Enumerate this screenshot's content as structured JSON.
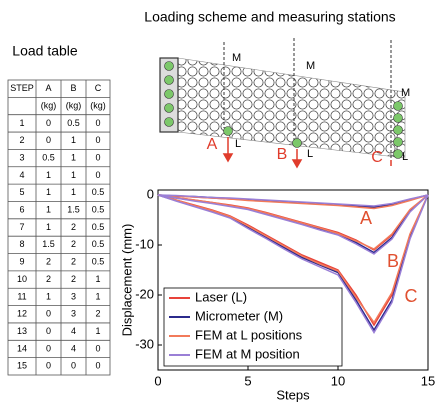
{
  "load_table": {
    "title": "Load table",
    "header": [
      "STEP",
      "A",
      "B",
      "C"
    ],
    "units": [
      "(kg)",
      "(kg)",
      "(kg)"
    ],
    "rows": [
      [
        1,
        0,
        0.5,
        0
      ],
      [
        2,
        0,
        1,
        0
      ],
      [
        3,
        0.5,
        1,
        0
      ],
      [
        4,
        1,
        1,
        0
      ],
      [
        5,
        1,
        1,
        0.5
      ],
      [
        6,
        1,
        1.5,
        0.5
      ],
      [
        7,
        1,
        2,
        0.5
      ],
      [
        8,
        1.5,
        2,
        0.5
      ],
      [
        9,
        2,
        2,
        0.5
      ],
      [
        10,
        2,
        2,
        1
      ],
      [
        11,
        1,
        3,
        1
      ],
      [
        12,
        0,
        3,
        2
      ],
      [
        13,
        0,
        4,
        1
      ],
      [
        14,
        0,
        4,
        0
      ],
      [
        15,
        0,
        0,
        0
      ]
    ]
  },
  "diagram": {
    "title": "Loading scheme and measuring stations",
    "loads": [
      "A",
      "B",
      "C"
    ],
    "stations_m": [
      "M",
      "M",
      "M"
    ],
    "stations_l": [
      "L",
      "L",
      "L"
    ]
  },
  "chart_data": {
    "type": "line",
    "x_label": "Steps",
    "y_label": "Displacement (mm)",
    "x": [
      0,
      1,
      2,
      3,
      4,
      5,
      6,
      7,
      8,
      9,
      10,
      11,
      12,
      13,
      14,
      15
    ],
    "xlim": [
      0,
      15
    ],
    "xticks": [
      0,
      5,
      10,
      15
    ],
    "ylim": [
      -35,
      1
    ],
    "yticks": [
      0,
      -10,
      -20,
      -30
    ],
    "annotations": [
      "A",
      "B",
      "C"
    ],
    "legend": "lower left",
    "series": [
      {
        "name": "Laser (L)",
        "color": "#e8433a",
        "lines": [
          {
            "values": [
              0,
              -0.2,
              -0.4,
              -0.6,
              -0.8,
              -1,
              -1.2,
              -1.4,
              -1.6,
              -1.8,
              -2,
              -2.3,
              -2.6,
              -2,
              -1,
              0
            ]
          },
          {
            "values": [
              0,
              -0.5,
              -1,
              -1.5,
              -2,
              -2.6,
              -3.5,
              -4.5,
              -5.5,
              -6.5,
              -7.5,
              -9,
              -11,
              -8,
              -3,
              0
            ]
          },
          {
            "values": [
              0,
              -1,
              -2,
              -3,
              -4.2,
              -6,
              -8,
              -10,
              -12,
              -13.5,
              -15,
              -20,
              -26,
              -20,
              -8,
              0
            ]
          }
        ]
      },
      {
        "name": "Micrometer (M)",
        "color": "#2b2a8c",
        "lines": [
          {
            "values": [
              0,
              -0.2,
              -0.3,
              -0.5,
              -0.7,
              -0.9,
              -1.1,
              -1.3,
              -1.5,
              -1.7,
              -1.9,
              -2.1,
              -2.4,
              -1.8,
              -0.9,
              0
            ]
          },
          {
            "values": [
              0,
              -0.6,
              -1.1,
              -1.6,
              -2.2,
              -2.8,
              -3.8,
              -4.8,
              -5.8,
              -6.8,
              -7.8,
              -9.5,
              -11.5,
              -8.5,
              -3.2,
              0
            ]
          },
          {
            "values": [
              0,
              -1.1,
              -2.2,
              -3.3,
              -4.5,
              -6.5,
              -8.5,
              -10.5,
              -12.5,
              -14,
              -15.5,
              -21,
              -27,
              -21,
              -8.5,
              0
            ]
          }
        ]
      },
      {
        "name": "FEM at L positions",
        "color": "#f27a5a",
        "lines": [
          {
            "values": [
              0,
              -0.2,
              -0.4,
              -0.6,
              -0.8,
              -1.1,
              -1.3,
              -1.5,
              -1.7,
              -1.9,
              -2.1,
              -2.4,
              -2.7,
              -2.1,
              -1.1,
              0
            ]
          },
          {
            "values": [
              0,
              -0.5,
              -1,
              -1.5,
              -2.1,
              -2.7,
              -3.6,
              -4.6,
              -5.6,
              -6.6,
              -7.7,
              -9.2,
              -10.8,
              -7.8,
              -2.9,
              0
            ]
          },
          {
            "values": [
              0,
              -1,
              -2.1,
              -3.1,
              -4.3,
              -6.2,
              -8.2,
              -10.2,
              -12.2,
              -13.8,
              -15.2,
              -20.5,
              -25.5,
              -19.5,
              -7.8,
              0
            ]
          }
        ]
      },
      {
        "name": "FEM at M position",
        "color": "#9a7fd6",
        "lines": [
          {
            "values": [
              0,
              -0.1,
              -0.3,
              -0.5,
              -0.6,
              -0.8,
              -1,
              -1.2,
              -1.4,
              -1.6,
              -1.8,
              -2,
              -2.2,
              -1.7,
              -0.8,
              0
            ]
          },
          {
            "values": [
              0,
              -0.6,
              -1.2,
              -1.7,
              -2.3,
              -2.9,
              -3.9,
              -4.9,
              -5.9,
              -7,
              -8,
              -9.8,
              -11.8,
              -8.8,
              -3.4,
              0
            ]
          },
          {
            "values": [
              0,
              -1.2,
              -2.3,
              -3.4,
              -4.6,
              -6.7,
              -8.7,
              -10.8,
              -12.8,
              -14.4,
              -16,
              -21.5,
              -27.5,
              -21.5,
              -8.8,
              0
            ]
          }
        ]
      }
    ]
  }
}
